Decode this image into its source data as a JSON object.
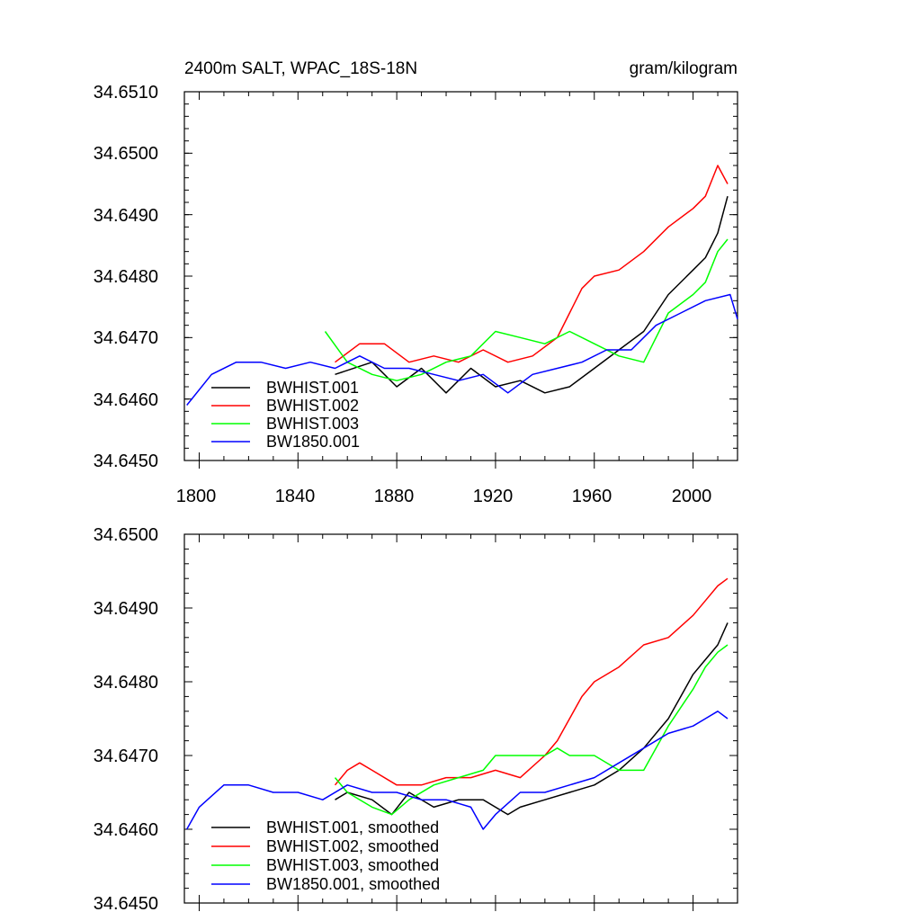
{
  "chart_data": [
    {
      "type": "line",
      "title": "2400m SALT, WPAC_18S-18N",
      "units": "gram/kilogram",
      "xlabel": "",
      "ylabel": "",
      "xlim": [
        1794,
        2018
      ],
      "ylim": [
        34.645,
        34.651
      ],
      "x_ticks": [
        1800,
        1840,
        1880,
        1920,
        1960,
        2000
      ],
      "x_tick_labels": [
        "1800",
        "1840",
        "1880",
        "1920",
        "1960",
        "2000"
      ],
      "y_ticks": [
        34.645,
        34.646,
        34.647,
        34.648,
        34.649,
        34.65,
        34.651
      ],
      "y_tick_labels": [
        "34.6450",
        "34.6460",
        "34.6470",
        "34.6480",
        "34.6490",
        "34.6500",
        "34.6510"
      ],
      "legend_position": "lower-left",
      "series": [
        {
          "name": "BWHIST.001",
          "color": "#000000",
          "x": [
            1855,
            1870,
            1880,
            1890,
            1900,
            1910,
            1920,
            1930,
            1940,
            1950,
            1960,
            1970,
            1980,
            1990,
            2000,
            2005,
            2010,
            2014
          ],
          "values": [
            34.6464,
            34.6466,
            34.6462,
            34.6465,
            34.6461,
            34.6465,
            34.6462,
            34.6463,
            34.6461,
            34.6462,
            34.6465,
            34.6468,
            34.6471,
            34.6477,
            34.6481,
            34.6483,
            34.6487,
            34.6493
          ]
        },
        {
          "name": "BWHIST.002",
          "color": "#ff0000",
          "x": [
            1855,
            1865,
            1875,
            1885,
            1895,
            1905,
            1915,
            1925,
            1935,
            1945,
            1950,
            1955,
            1960,
            1970,
            1980,
            1990,
            2000,
            2005,
            2010,
            2014
          ],
          "values": [
            34.6466,
            34.6469,
            34.6469,
            34.6466,
            34.6467,
            34.6466,
            34.6468,
            34.6466,
            34.6467,
            34.647,
            34.6474,
            34.6478,
            34.648,
            34.6481,
            34.6484,
            34.6488,
            34.6491,
            34.6493,
            34.6498,
            34.6495
          ]
        },
        {
          "name": "BWHIST.003",
          "color": "#00ff00",
          "x": [
            1851,
            1860,
            1870,
            1880,
            1890,
            1900,
            1910,
            1920,
            1930,
            1940,
            1950,
            1960,
            1970,
            1980,
            1990,
            2000,
            2005,
            2010,
            2014
          ],
          "values": [
            34.6471,
            34.6466,
            34.6464,
            34.6463,
            34.6464,
            34.6466,
            34.6467,
            34.6471,
            34.647,
            34.6469,
            34.6471,
            34.6469,
            34.6467,
            34.6466,
            34.6474,
            34.6477,
            34.6479,
            34.6484,
            34.6486
          ]
        },
        {
          "name": "BW1850.001",
          "color": "#0000ff",
          "x": [
            1795,
            1805,
            1815,
            1825,
            1835,
            1845,
            1855,
            1865,
            1875,
            1885,
            1895,
            1905,
            1915,
            1925,
            1935,
            1945,
            1955,
            1965,
            1975,
            1985,
            1995,
            2005,
            2015,
            2018
          ],
          "values": [
            34.6459,
            34.6464,
            34.6466,
            34.6466,
            34.6465,
            34.6466,
            34.6465,
            34.6467,
            34.6465,
            34.6465,
            34.6464,
            34.6463,
            34.6464,
            34.6461,
            34.6464,
            34.6465,
            34.6466,
            34.6468,
            34.6468,
            34.6472,
            34.6474,
            34.6476,
            34.6477,
            34.6473
          ]
        }
      ]
    },
    {
      "type": "line",
      "title": "",
      "xlabel": "",
      "ylabel": "",
      "xlim": [
        1794,
        2018
      ],
      "ylim": [
        34.645,
        34.65
      ],
      "x_ticks": [
        1800,
        1840,
        1880,
        1920,
        1960,
        2000
      ],
      "y_ticks": [
        34.645,
        34.646,
        34.647,
        34.648,
        34.649,
        34.65
      ],
      "y_tick_labels": [
        "34.6450",
        "34.6460",
        "34.6470",
        "34.6480",
        "34.6490",
        "34.6500"
      ],
      "legend_position": "lower-left",
      "series": [
        {
          "name": "BWHIST.001, smoothed",
          "color": "#000000",
          "x": [
            1855,
            1860,
            1870,
            1878,
            1885,
            1895,
            1905,
            1915,
            1925,
            1930,
            1940,
            1950,
            1960,
            1970,
            1980,
            1990,
            1995,
            2000,
            2005,
            2010,
            2014
          ],
          "values": [
            34.6464,
            34.6465,
            34.6464,
            34.6462,
            34.6465,
            34.6463,
            34.6464,
            34.6464,
            34.6462,
            34.6463,
            34.6464,
            34.6465,
            34.6466,
            34.6468,
            34.6471,
            34.6475,
            34.6478,
            34.6481,
            34.6483,
            34.6485,
            34.6488
          ]
        },
        {
          "name": "BWHIST.002, smoothed",
          "color": "#ff0000",
          "x": [
            1855,
            1860,
            1865,
            1870,
            1880,
            1890,
            1900,
            1910,
            1920,
            1930,
            1940,
            1945,
            1950,
            1955,
            1960,
            1970,
            1980,
            1990,
            2000,
            2005,
            2010,
            2014
          ],
          "values": [
            34.6466,
            34.6468,
            34.6469,
            34.6468,
            34.6466,
            34.6466,
            34.6467,
            34.6467,
            34.6468,
            34.6467,
            34.647,
            34.6472,
            34.6475,
            34.6478,
            34.648,
            34.6482,
            34.6485,
            34.6486,
            34.6489,
            34.6491,
            34.6493,
            34.6494
          ]
        },
        {
          "name": "BWHIST.003, smoothed",
          "color": "#00ff00",
          "x": [
            1855,
            1860,
            1870,
            1878,
            1885,
            1895,
            1905,
            1915,
            1920,
            1930,
            1940,
            1945,
            1950,
            1960,
            1970,
            1980,
            1990,
            2000,
            2005,
            2010,
            2014
          ],
          "values": [
            34.6467,
            34.6465,
            34.6463,
            34.6462,
            34.6464,
            34.6466,
            34.6467,
            34.6468,
            34.647,
            34.647,
            34.647,
            34.6471,
            34.647,
            34.647,
            34.6468,
            34.6468,
            34.6474,
            34.6479,
            34.6482,
            34.6484,
            34.6485
          ]
        },
        {
          "name": "BW1850.001, smoothed",
          "color": "#0000ff",
          "x": [
            1795,
            1800,
            1810,
            1820,
            1830,
            1840,
            1850,
            1860,
            1870,
            1880,
            1890,
            1900,
            1910,
            1915,
            1920,
            1930,
            1940,
            1950,
            1960,
            1970,
            1980,
            1990,
            2000,
            2005,
            2010,
            2014
          ],
          "values": [
            34.646,
            34.6463,
            34.6466,
            34.6466,
            34.6465,
            34.6465,
            34.6464,
            34.6466,
            34.6465,
            34.6465,
            34.6464,
            34.6464,
            34.6463,
            34.646,
            34.6462,
            34.6465,
            34.6465,
            34.6466,
            34.6467,
            34.6469,
            34.6471,
            34.6473,
            34.6474,
            34.6475,
            34.6476,
            34.6475
          ]
        }
      ]
    }
  ]
}
